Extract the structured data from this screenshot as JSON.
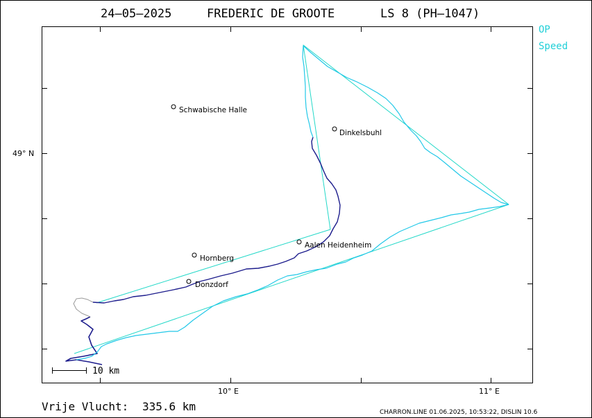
{
  "title": {
    "date": "24–05–2025",
    "pilot": "FREDERIC DE GROOTE",
    "glider": "LS 8 (PH–1047)"
  },
  "legend": {
    "items": [
      "OP",
      "Speed"
    ],
    "color": "#22d0d8"
  },
  "axes": {
    "lat_label": "49° N",
    "lon_labels": [
      "10° E",
      "11° E"
    ]
  },
  "towns": [
    {
      "name": "Schwabische Halle"
    },
    {
      "name": "Dinkelsbuhl"
    },
    {
      "name": "Aalen Heidenheim"
    },
    {
      "name": "Hornberg"
    },
    {
      "name": "Donzdorf"
    }
  ],
  "scale_bar": {
    "label": "10 km"
  },
  "distance": {
    "label": "Vrije Vlucht:",
    "value": "335.6 km"
  },
  "footer": {
    "credit": "CHARRON.LINE 01.06.2025, 10:53:22, DISLIN 10.6"
  },
  "colors": {
    "op_line": "#22d8c8",
    "track_fast": "#22c8e8",
    "track_slow": "#1c1c8c",
    "track_thermal": "#9a9a9a"
  }
}
